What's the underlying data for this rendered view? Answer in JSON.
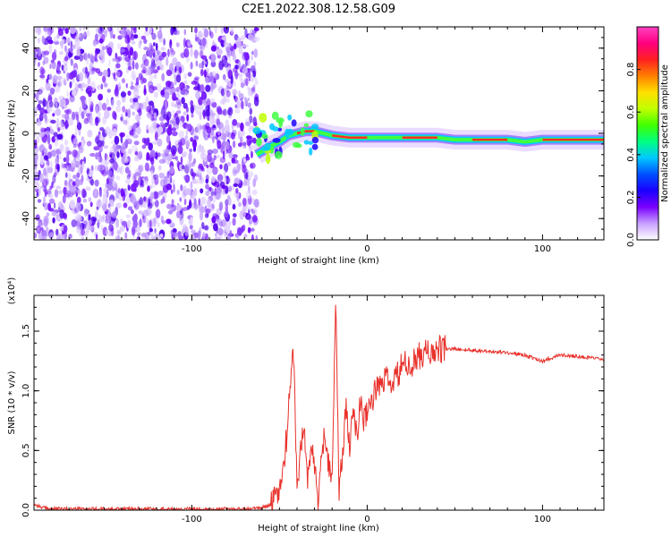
{
  "title": "C2E1.2022.308.12.58.G09",
  "colors": {
    "snr_line": "#e8302a",
    "background": "#ffffff",
    "axis": "#000000"
  },
  "chart_data": [
    {
      "type": "heatmap",
      "xlabel": "Height of straight line (km)",
      "ylabel": "Frequency (Hz)",
      "xlim": [
        -190,
        135
      ],
      "ylim": [
        -50,
        50
      ],
      "xticks": [
        -100,
        0,
        100
      ],
      "xtick_labels": [
        "-100",
        "0",
        "100"
      ],
      "yticks": [
        -40,
        -20,
        0,
        20,
        40
      ],
      "ytick_labels": [
        "-40",
        "-20",
        "0",
        "20",
        "40"
      ],
      "noise_region_x": [
        -190,
        -63
      ],
      "ridge": {
        "x": [
          -63,
          -55,
          -50,
          -45,
          -40,
          -35,
          -30,
          -25,
          -20,
          -10,
          0,
          10,
          20,
          30,
          40,
          50,
          60,
          70,
          80,
          90,
          100,
          110,
          120,
          135
        ],
        "frequency": [
          -10,
          -6,
          -4,
          -1,
          0,
          1,
          1,
          0,
          -1,
          -2,
          -2,
          -2,
          -2,
          -2,
          -2,
          -3,
          -3,
          -3,
          -3,
          -4,
          -3,
          -3,
          -3,
          -3
        ]
      },
      "colorbar": {
        "label": "Normalized spectral amplitude",
        "range": [
          0,
          1
        ],
        "ticks": [
          0.0,
          0.2,
          0.4,
          0.6,
          0.8
        ],
        "tick_labels": [
          "0.0",
          "0.2",
          "0.4",
          "0.6",
          "0.8"
        ],
        "colors": [
          "#ffffff",
          "#c8a0ff",
          "#7a00ff",
          "#1a00ff",
          "#0050ff",
          "#00c8ff",
          "#00ff80",
          "#40ff00",
          "#c0ff00",
          "#ffe000",
          "#ff8000",
          "#ff2020",
          "#ff0080",
          "#ff40c0"
        ]
      }
    },
    {
      "type": "line",
      "xlabel": "Height of straight line (km)",
      "ylabel": "SNR (10 * v/v)",
      "y_multiplier": "(x10⁴)",
      "xlim": [
        -190,
        135
      ],
      "ylim": [
        0,
        1.8
      ],
      "xticks": [
        -100,
        0,
        100
      ],
      "xtick_labels": [
        "-100",
        "0",
        "100"
      ],
      "yticks": [
        0.0,
        0.5,
        1.0,
        1.5
      ],
      "ytick_labels": [
        "0.0",
        "0.5",
        "1.0",
        "1.5"
      ],
      "series": [
        {
          "x": [
            -190,
            -185,
            -180,
            -150,
            -120,
            -90,
            -70,
            -60,
            -55,
            -50,
            -48,
            -46,
            -44,
            -42,
            -40,
            -38,
            -36,
            -34,
            -32,
            -30,
            -28,
            -26,
            -24,
            -22,
            -20,
            -18,
            -16,
            -14,
            -12,
            -10,
            -8,
            -6,
            -4,
            -2,
            0,
            5,
            10,
            15,
            20,
            25,
            30,
            35,
            40,
            45,
            50,
            60,
            70,
            80,
            90,
            95,
            100,
            110,
            120,
            130,
            135
          ],
          "y": [
            0.05,
            0.02,
            0.01,
            0.01,
            0.01,
            0.01,
            0.01,
            0.02,
            0.05,
            0.15,
            0.35,
            0.6,
            1.0,
            1.35,
            0.2,
            0.5,
            0.7,
            0.25,
            0.55,
            0.35,
            0.1,
            0.45,
            0.65,
            0.4,
            0.3,
            1.75,
            0.15,
            0.5,
            0.85,
            0.55,
            0.95,
            0.6,
            0.9,
            0.75,
            0.85,
            1.0,
            1.1,
            1.05,
            1.22,
            1.2,
            1.3,
            1.32,
            1.34,
            1.35,
            1.35,
            1.34,
            1.33,
            1.32,
            1.3,
            1.27,
            1.25,
            1.3,
            1.29,
            1.27,
            1.26
          ]
        }
      ]
    }
  ]
}
